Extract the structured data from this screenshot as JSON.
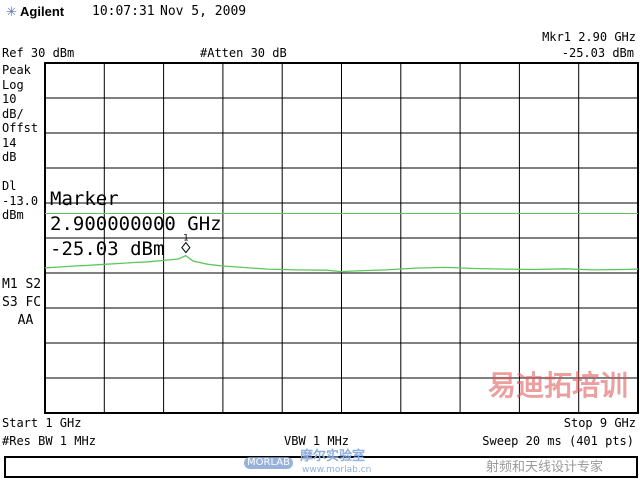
{
  "header": {
    "brand": "Agilent",
    "time": "10:07:31",
    "date": "Nov 5, 2009",
    "logo_icon": "agilent-spark-icon"
  },
  "top": {
    "ref": "Ref 30 dBm",
    "atten": "#Atten 30 dB",
    "mkr_label": "Mkr1  2.90 GHz",
    "mkr_value": "-25.03 dBm"
  },
  "left_panel": [
    "Peak",
    "Log",
    "10",
    "dB/",
    "Offst",
    "14",
    "dB",
    "",
    "Dl",
    "-13.0",
    "dBm"
  ],
  "left_flags": [
    "M1 S2",
    "S3 FC",
    "  AA"
  ],
  "marker_box": {
    "title": "Marker",
    "freq": "2.900000000 GHz",
    "level": "-25.03 dBm",
    "marker_num": "1"
  },
  "bottom": {
    "start": "Start 1 GHz",
    "stop": "Stop 9 GHz",
    "rbw": "#Res BW 1 MHz",
    "vbw": "VBW 1 MHz",
    "sweep": "Sweep 20 ms (401 pts)"
  },
  "watermarks": {
    "morlab": "MORLAB",
    "morlab_cn": "摩尔实验室",
    "morlab_url": "www.morlab.cn",
    "edatop": "易迪拓培训",
    "edatop_sub": "射频和天线设计专家"
  },
  "colors": {
    "trace": "#5cc85c",
    "display_line": "#5cc85c",
    "grid": "#000000"
  },
  "chart_data": {
    "type": "line",
    "xlim": [
      1,
      9
    ],
    "xunit": "GHz",
    "ylim": [
      -70,
      30
    ],
    "yunit": "dBm",
    "y_per_div": 10,
    "grid": true,
    "display_line": -13.0,
    "marker": {
      "x": 2.9,
      "y": -25.03
    },
    "x": [
      1.0,
      1.2,
      1.4,
      1.6,
      1.8,
      2.0,
      2.2,
      2.4,
      2.6,
      2.8,
      2.9,
      3.0,
      3.2,
      3.4,
      3.6,
      3.8,
      4.0,
      4.4,
      4.8,
      5.0,
      5.2,
      5.6,
      6.0,
      6.4,
      6.8,
      7.2,
      7.6,
      8.0,
      8.4,
      8.8,
      9.0
    ],
    "y": [
      -28.5,
      -28.3,
      -28.0,
      -27.8,
      -27.5,
      -27.3,
      -27.0,
      -26.8,
      -26.4,
      -26.0,
      -25.03,
      -26.6,
      -27.5,
      -28.0,
      -28.3,
      -28.6,
      -28.9,
      -29.1,
      -29.2,
      -29.6,
      -29.4,
      -29.1,
      -28.6,
      -28.4,
      -28.7,
      -28.9,
      -29.0,
      -28.8,
      -29.1,
      -29.0,
      -28.9
    ]
  }
}
